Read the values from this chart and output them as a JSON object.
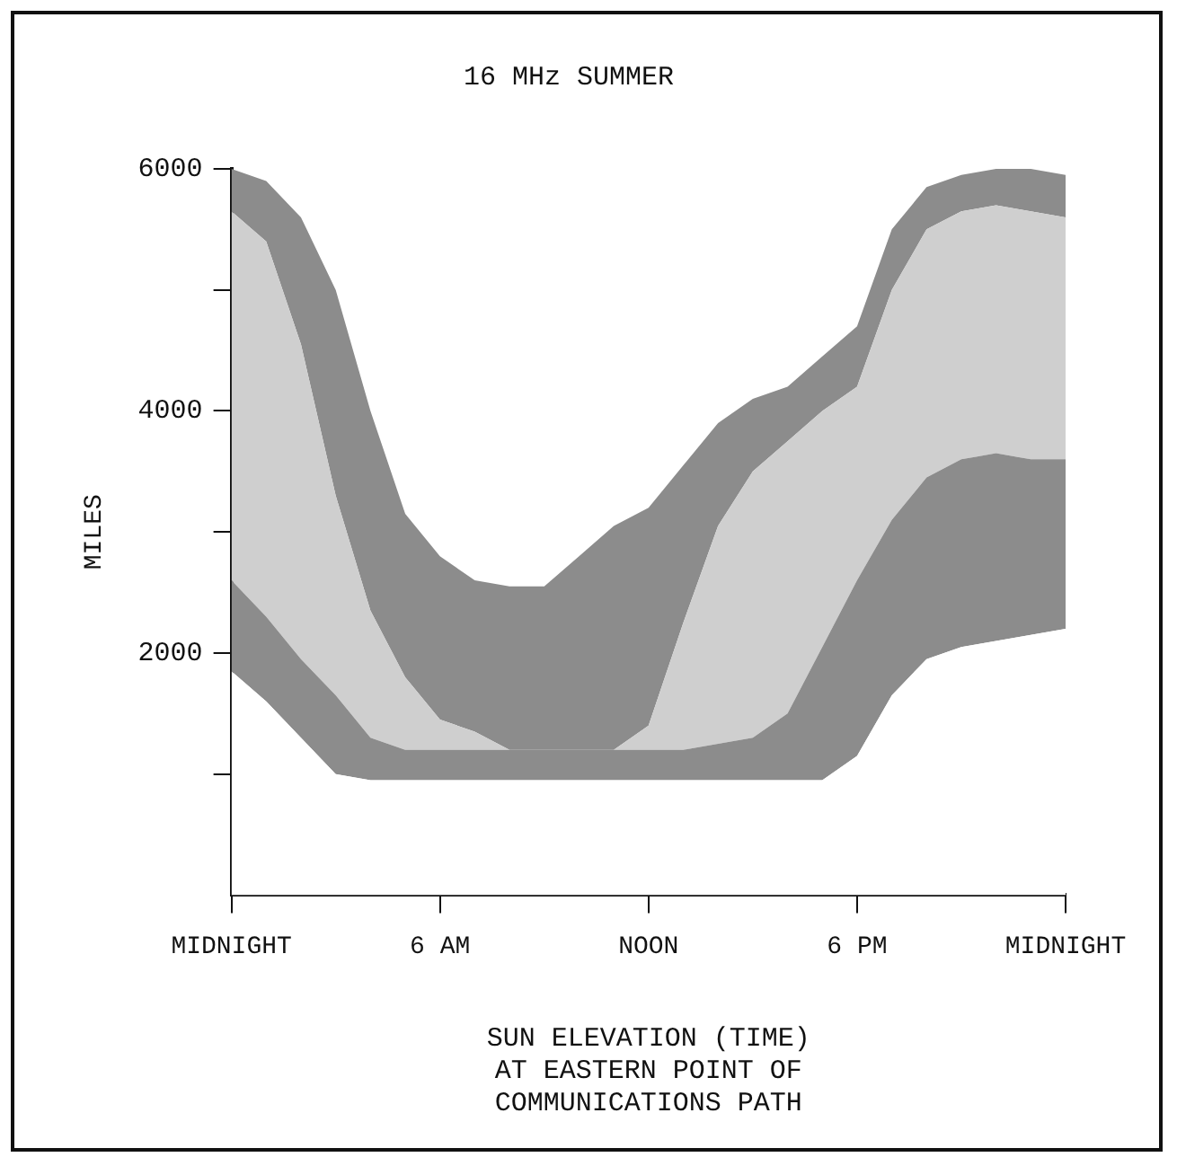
{
  "chart_data": {
    "type": "area",
    "title": "16 MHz SUMMER",
    "xlabel": "SUN ELEVATION (TIME)\nAT EASTERN POINT OF\nCOMMUNICATIONS PATH",
    "ylabel": "MILES",
    "categories": [
      "MIDNIGHT",
      null,
      null,
      null,
      null,
      null,
      "6 AM",
      null,
      null,
      null,
      null,
      null,
      "NOON",
      null,
      null,
      null,
      null,
      null,
      "6 PM",
      null,
      null,
      null,
      null,
      null,
      "MIDNIGHT"
    ],
    "stacked": true,
    "series": [
      {
        "color": "#ffffff",
        "values": [
          1850,
          1600,
          1300,
          1000,
          950,
          950,
          950,
          950,
          950,
          950,
          950,
          950,
          950,
          950,
          950,
          950,
          950,
          950,
          1150,
          1650,
          1950,
          2050,
          2100,
          2150,
          2200
        ]
      },
      {
        "color": "#8c8c8c",
        "values": [
          750,
          700,
          650,
          650,
          350,
          250,
          250,
          250,
          250,
          250,
          250,
          250,
          250,
          250,
          300,
          350,
          550,
          1100,
          1450,
          1450,
          1500,
          1550,
          1550,
          1450,
          1400
        ]
      },
      {
        "color": "#cfcfcf",
        "values": [
          3050,
          3100,
          2600,
          1650,
          1050,
          600,
          250,
          150,
          0,
          0,
          0,
          0,
          200,
          1050,
          1800,
          2200,
          2250,
          1950,
          1600,
          1900,
          2050,
          2050,
          2050,
          2050,
          2000
        ]
      },
      {
        "color": "#8c8c8c",
        "values": [
          350,
          500,
          1050,
          1700,
          1650,
          1350,
          1350,
          1250,
          1350,
          1350,
          1600,
          1850,
          1800,
          1300,
          850,
          600,
          450,
          450,
          500,
          500,
          350,
          300,
          300,
          350,
          350
        ]
      }
    ],
    "ylim": [
      0,
      6000
    ],
    "yticks": [
      {
        "value": 1000,
        "label": null
      },
      2000,
      {
        "value": 3000,
        "label": null
      },
      4000,
      {
        "value": 5000,
        "label": null
      },
      6000
    ],
    "grid": false,
    "legend": false
  }
}
